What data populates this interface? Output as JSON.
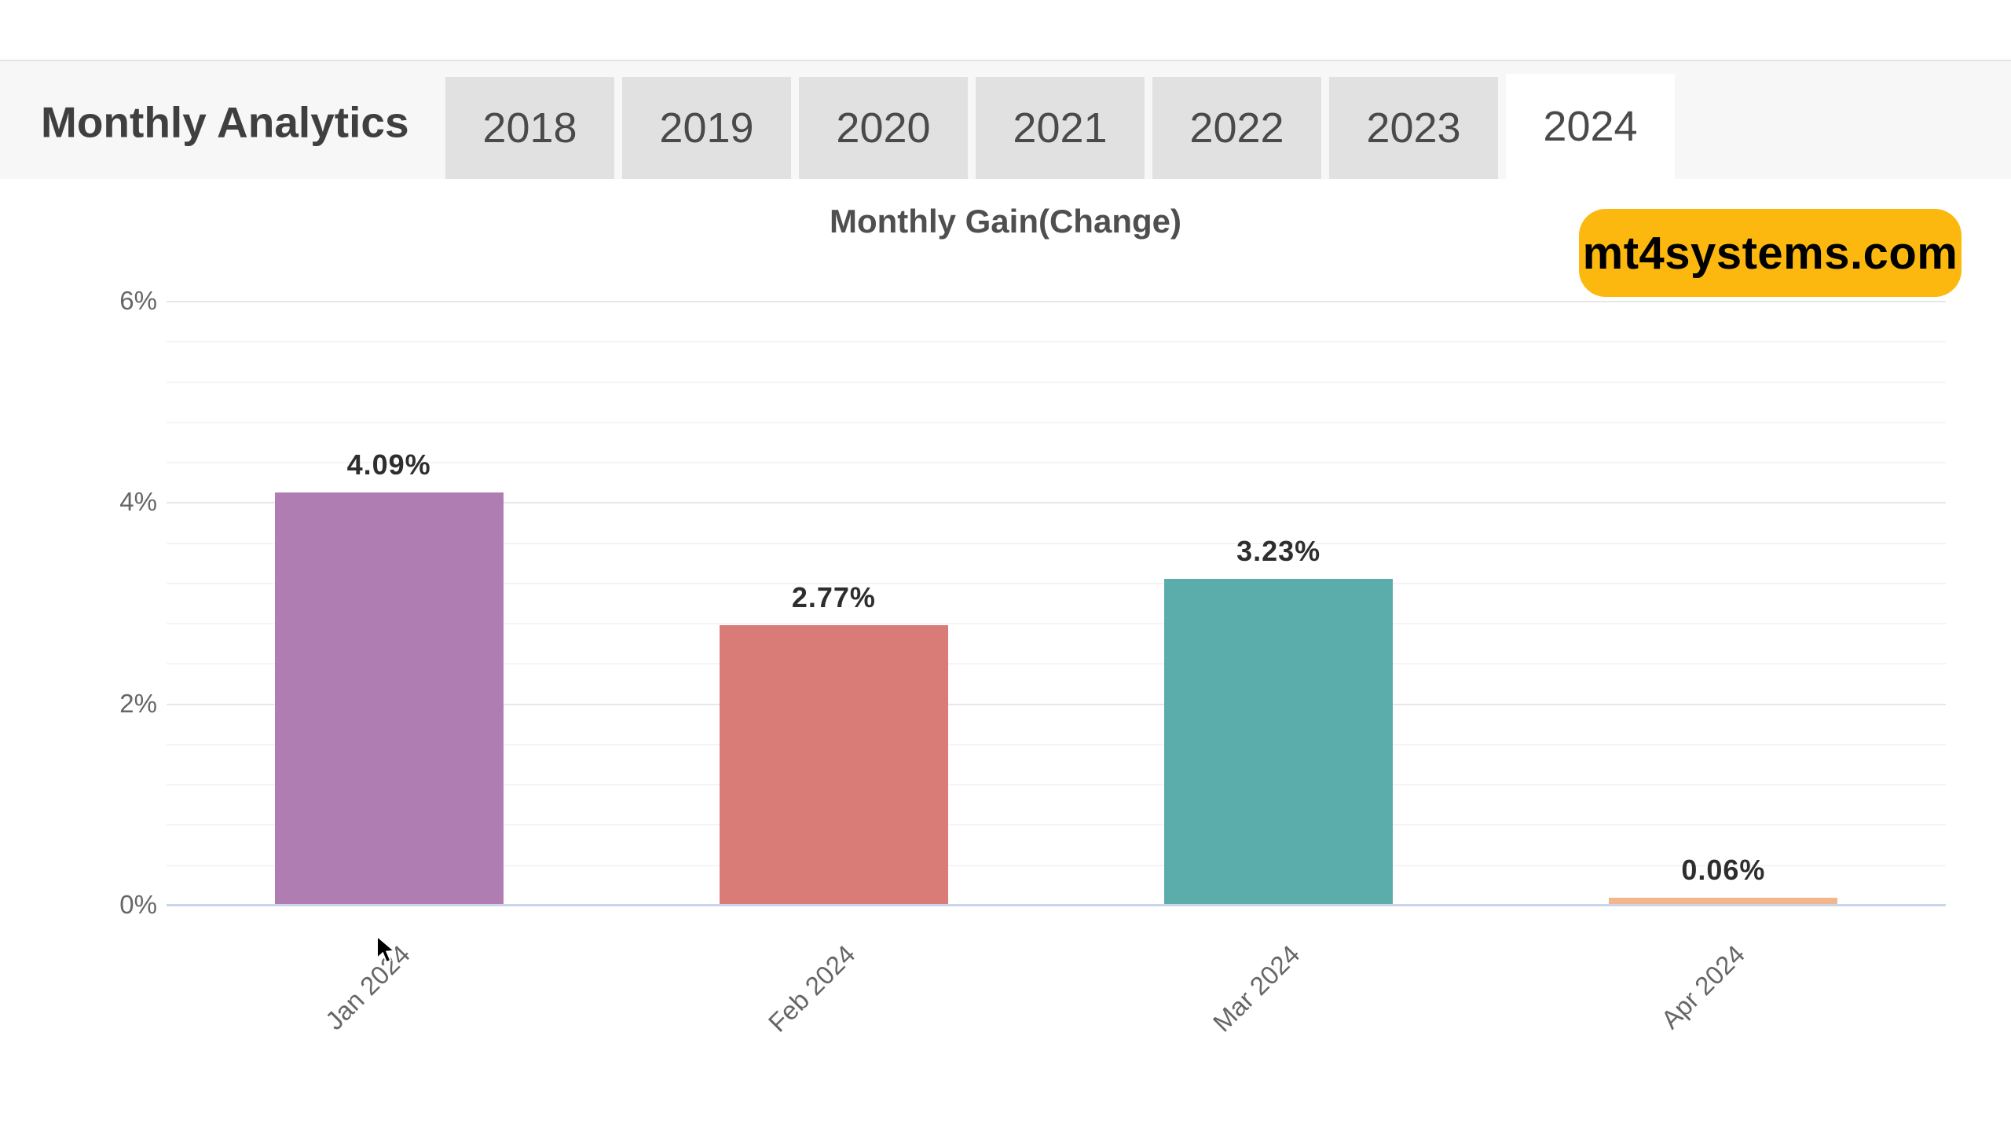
{
  "header": {
    "title": "Monthly Analytics",
    "tabs": [
      "2018",
      "2019",
      "2020",
      "2021",
      "2022",
      "2023",
      "2024"
    ],
    "active_tab": "2024"
  },
  "watermark": {
    "label": "mt4systems.com",
    "background": "#fcb80e"
  },
  "chart_data": {
    "type": "bar",
    "title": "Monthly Gain(Change)",
    "categories": [
      "Jan 2024",
      "Feb 2024",
      "Mar 2024",
      "Apr 2024"
    ],
    "values": [
      4.09,
      2.77,
      3.23,
      0.06
    ],
    "value_labels": [
      "4.09%",
      "2.77%",
      "3.23%",
      "0.06%"
    ],
    "bar_colors": [
      "#b07db3",
      "#d97b77",
      "#5badac",
      "#f2b68c"
    ],
    "xlabel": "",
    "ylabel": "",
    "y_ticks": [
      {
        "label": "6%",
        "value": 6
      },
      {
        "label": "4%",
        "value": 4
      },
      {
        "label": "2%",
        "value": 2
      },
      {
        "label": "0%",
        "value": 0
      }
    ],
    "ylim": [
      0,
      6
    ],
    "grid": true,
    "minor_divisions_per_major": 5,
    "legend_position": "none",
    "colors": {
      "axis_line": "#ccd6eb",
      "major_grid": "#e7e7e7",
      "minor_grid": "#f4f4f4",
      "tick_text": "#666666",
      "data_label_text": "#2e2e2e"
    }
  }
}
